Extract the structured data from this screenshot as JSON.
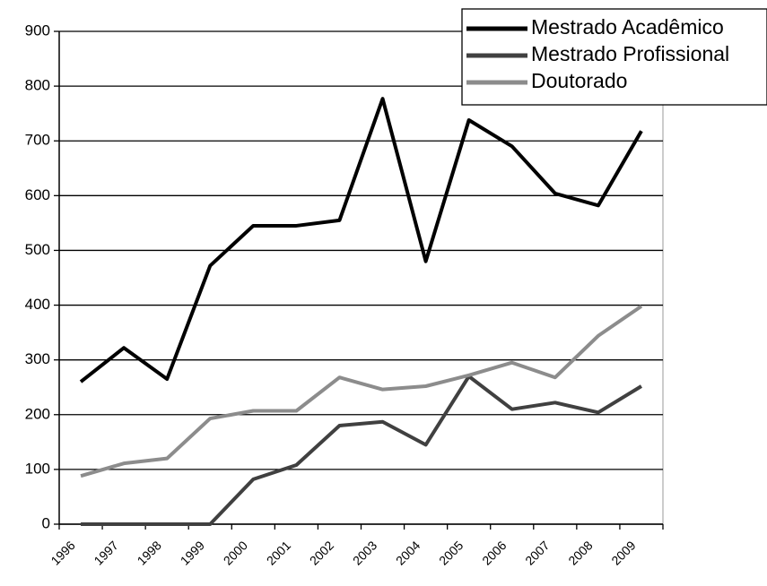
{
  "chart_data": {
    "type": "line",
    "categories": [
      "1996",
      "1997",
      "1998",
      "1999",
      "2000",
      "2001",
      "2002",
      "2003",
      "2004",
      "2005",
      "2006",
      "2007",
      "2008",
      "2009"
    ],
    "series": [
      {
        "name": "Mestrado Acadêmico",
        "color": "#000000",
        "values": [
          260,
          322,
          265,
          472,
          545,
          545,
          555,
          777,
          480,
          738,
          690,
          604,
          582,
          718
        ]
      },
      {
        "name": "Mestrado Profissional",
        "color": "#404040",
        "values": [
          0,
          0,
          0,
          0,
          82,
          108,
          180,
          187,
          145,
          270,
          210,
          222,
          204,
          252
        ]
      },
      {
        "name": "Doutorado",
        "color": "#8c8c8c",
        "values": [
          88,
          111,
          120,
          193,
          207,
          207,
          268,
          246,
          252,
          272,
          295,
          268,
          344,
          398
        ]
      }
    ],
    "ylim": [
      0,
      900
    ],
    "yticks": [
      0,
      100,
      200,
      300,
      400,
      500,
      600,
      700,
      800,
      900
    ],
    "grid": true,
    "legend": "upper right"
  }
}
